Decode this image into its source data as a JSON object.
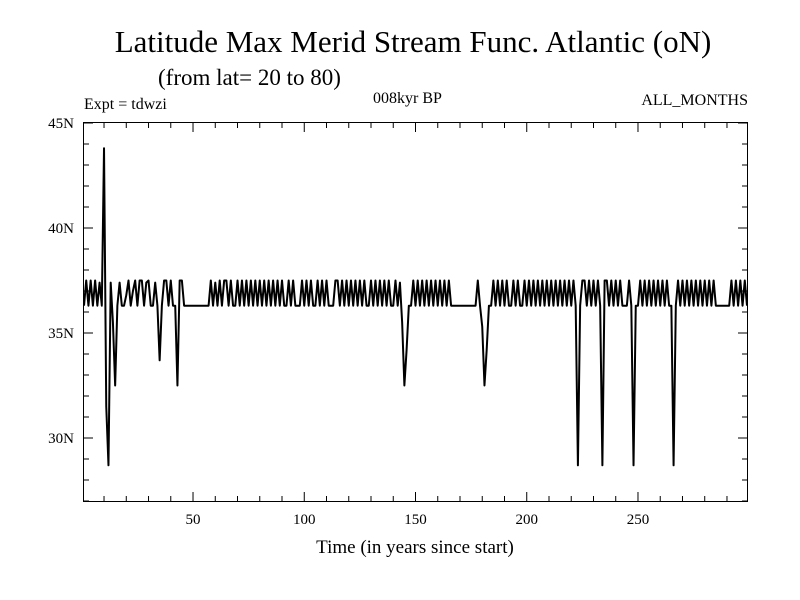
{
  "title": "Latitude Max Merid Stream Func. Atlantic (oN)",
  "subtitle": "(from lat= 20 to 80)",
  "expt_label": "Expt = tdwzi",
  "period_label": "008kyr BP",
  "months_label": "ALL_MONTHS",
  "chart_data": {
    "type": "line",
    "title": "Latitude Max Merid Stream Func. Atlantic (oN)",
    "xlabel": "Time (in years since start)",
    "ylabel": "",
    "xlim": [
      1,
      299
    ],
    "ylim": [
      27,
      45
    ],
    "x_ticks": [
      50,
      100,
      150,
      200,
      250
    ],
    "x_tick_labels": [
      "50",
      "100",
      "150",
      "200",
      "250"
    ],
    "y_ticks": [
      30,
      35,
      40,
      45
    ],
    "y_tick_labels": [
      "30N",
      "35N",
      "40N",
      "45N"
    ],
    "line_color": "#000000",
    "grid": false,
    "series": [
      {
        "values": [
          [
            1,
            36.3
          ],
          [
            2,
            37.5
          ],
          [
            3,
            36.3
          ],
          [
            4,
            37.5
          ],
          [
            5,
            36.3
          ],
          [
            6,
            37.5
          ],
          [
            7,
            36.3
          ],
          [
            8,
            37.4
          ],
          [
            9,
            36.3
          ],
          [
            10,
            43.8
          ],
          [
            11,
            31.5
          ],
          [
            12,
            28.7
          ],
          [
            13,
            37.4
          ],
          [
            14,
            35.5
          ],
          [
            15,
            32.5
          ],
          [
            16,
            36.3
          ],
          [
            17,
            37.4
          ],
          [
            18,
            36.3
          ],
          [
            19,
            36.3
          ],
          [
            20,
            36.8
          ],
          [
            21,
            37.5
          ],
          [
            22,
            36.3
          ],
          [
            23,
            37.0
          ],
          [
            24,
            37.5
          ],
          [
            25,
            36.3
          ],
          [
            26,
            37.5
          ],
          [
            27,
            37.5
          ],
          [
            28,
            36.3
          ],
          [
            29,
            37.4
          ],
          [
            30,
            37.5
          ],
          [
            31,
            36.3
          ],
          [
            32,
            36.3
          ],
          [
            33,
            37.4
          ],
          [
            34,
            36.3
          ],
          [
            35,
            33.7
          ],
          [
            36,
            36.3
          ],
          [
            37,
            37.5
          ],
          [
            38,
            37.5
          ],
          [
            39,
            36.3
          ],
          [
            40,
            37.5
          ],
          [
            41,
            36.3
          ],
          [
            42,
            36.3
          ],
          [
            43,
            32.5
          ],
          [
            44,
            37.5
          ],
          [
            45,
            37.5
          ],
          [
            46,
            36.3
          ],
          [
            47,
            36.3
          ],
          [
            48,
            36.3
          ],
          [
            49,
            36.3
          ],
          [
            50,
            36.3
          ],
          [
            51,
            36.3
          ],
          [
            52,
            36.3
          ],
          [
            53,
            36.3
          ],
          [
            54,
            36.3
          ],
          [
            55,
            36.3
          ],
          [
            56,
            36.3
          ],
          [
            57,
            36.3
          ],
          [
            58,
            37.5
          ],
          [
            59,
            36.3
          ],
          [
            60,
            37.4
          ],
          [
            61,
            36.3
          ],
          [
            62,
            37.5
          ],
          [
            63,
            36.3
          ],
          [
            64,
            37.5
          ],
          [
            65,
            37.5
          ],
          [
            66,
            36.3
          ],
          [
            67,
            37.5
          ],
          [
            68,
            36.3
          ],
          [
            69,
            36.3
          ],
          [
            70,
            37.5
          ],
          [
            71,
            36.3
          ],
          [
            72,
            37.5
          ],
          [
            73,
            36.3
          ],
          [
            74,
            37.5
          ],
          [
            75,
            36.3
          ],
          [
            76,
            37.5
          ],
          [
            77,
            36.3
          ],
          [
            78,
            37.5
          ],
          [
            79,
            36.3
          ],
          [
            80,
            37.5
          ],
          [
            81,
            36.3
          ],
          [
            82,
            37.5
          ],
          [
            83,
            36.3
          ],
          [
            84,
            37.5
          ],
          [
            85,
            36.3
          ],
          [
            86,
            37.5
          ],
          [
            87,
            36.3
          ],
          [
            88,
            37.5
          ],
          [
            89,
            36.3
          ],
          [
            90,
            37.5
          ],
          [
            91,
            36.3
          ],
          [
            92,
            36.3
          ],
          [
            93,
            37.5
          ],
          [
            94,
            36.3
          ],
          [
            95,
            37.5
          ],
          [
            96,
            36.3
          ],
          [
            97,
            36.3
          ],
          [
            98,
            36.3
          ],
          [
            99,
            37.5
          ],
          [
            100,
            36.3
          ],
          [
            101,
            37.5
          ],
          [
            102,
            36.3
          ],
          [
            103,
            37.5
          ],
          [
            104,
            36.3
          ],
          [
            105,
            36.3
          ],
          [
            106,
            37.5
          ],
          [
            107,
            36.3
          ],
          [
            108,
            37.5
          ],
          [
            109,
            36.3
          ],
          [
            110,
            37.5
          ],
          [
            111,
            36.3
          ],
          [
            112,
            36.3
          ],
          [
            113,
            36.3
          ],
          [
            114,
            37.5
          ],
          [
            115,
            37.5
          ],
          [
            116,
            36.3
          ],
          [
            117,
            37.5
          ],
          [
            118,
            36.3
          ],
          [
            119,
            37.5
          ],
          [
            120,
            36.3
          ],
          [
            121,
            37.5
          ],
          [
            122,
            36.3
          ],
          [
            123,
            37.5
          ],
          [
            124,
            36.3
          ],
          [
            125,
            37.5
          ],
          [
            126,
            36.3
          ],
          [
            127,
            37.5
          ],
          [
            128,
            36.3
          ],
          [
            129,
            36.3
          ],
          [
            130,
            37.5
          ],
          [
            131,
            36.3
          ],
          [
            132,
            37.5
          ],
          [
            133,
            36.3
          ],
          [
            134,
            37.5
          ],
          [
            135,
            36.3
          ],
          [
            136,
            37.5
          ],
          [
            137,
            36.3
          ],
          [
            138,
            37.5
          ],
          [
            139,
            36.3
          ],
          [
            140,
            36.3
          ],
          [
            141,
            37.5
          ],
          [
            142,
            36.3
          ],
          [
            143,
            37.4
          ],
          [
            144,
            35.5
          ],
          [
            145,
            32.5
          ],
          [
            146,
            34.2
          ],
          [
            147,
            36.3
          ],
          [
            148,
            36.3
          ],
          [
            149,
            37.5
          ],
          [
            150,
            36.3
          ],
          [
            151,
            37.5
          ],
          [
            152,
            36.3
          ],
          [
            153,
            37.5
          ],
          [
            154,
            36.3
          ],
          [
            155,
            37.5
          ],
          [
            156,
            36.3
          ],
          [
            157,
            37.5
          ],
          [
            158,
            36.3
          ],
          [
            159,
            37.5
          ],
          [
            160,
            36.3
          ],
          [
            161,
            37.5
          ],
          [
            162,
            36.3
          ],
          [
            163,
            37.5
          ],
          [
            164,
            36.3
          ],
          [
            165,
            37.5
          ],
          [
            166,
            36.3
          ],
          [
            167,
            36.3
          ],
          [
            168,
            36.3
          ],
          [
            169,
            36.3
          ],
          [
            170,
            36.3
          ],
          [
            171,
            36.3
          ],
          [
            172,
            36.3
          ],
          [
            173,
            36.3
          ],
          [
            174,
            36.3
          ],
          [
            175,
            36.3
          ],
          [
            176,
            36.3
          ],
          [
            177,
            36.3
          ],
          [
            178,
            37.5
          ],
          [
            179,
            36.3
          ],
          [
            180,
            35.3
          ],
          [
            181,
            32.5
          ],
          [
            182,
            34.2
          ],
          [
            183,
            36.3
          ],
          [
            184,
            36.3
          ],
          [
            185,
            37.5
          ],
          [
            186,
            36.3
          ],
          [
            187,
            37.5
          ],
          [
            188,
            36.3
          ],
          [
            189,
            37.5
          ],
          [
            190,
            36.3
          ],
          [
            191,
            37.5
          ],
          [
            192,
            36.3
          ],
          [
            193,
            36.3
          ],
          [
            194,
            37.5
          ],
          [
            195,
            36.3
          ],
          [
            196,
            37.5
          ],
          [
            197,
            36.3
          ],
          [
            198,
            36.3
          ],
          [
            199,
            37.5
          ],
          [
            200,
            36.3
          ],
          [
            201,
            37.5
          ],
          [
            202,
            36.3
          ],
          [
            203,
            37.5
          ],
          [
            204,
            36.3
          ],
          [
            205,
            37.5
          ],
          [
            206,
            36.3
          ],
          [
            207,
            37.5
          ],
          [
            208,
            36.3
          ],
          [
            209,
            37.5
          ],
          [
            210,
            36.3
          ],
          [
            211,
            37.5
          ],
          [
            212,
            36.3
          ],
          [
            213,
            37.5
          ],
          [
            214,
            36.3
          ],
          [
            215,
            37.5
          ],
          [
            216,
            36.3
          ],
          [
            217,
            37.5
          ],
          [
            218,
            36.3
          ],
          [
            219,
            37.5
          ],
          [
            220,
            36.3
          ],
          [
            221,
            37.5
          ],
          [
            222,
            36.3
          ],
          [
            223,
            28.7
          ],
          [
            224,
            36.3
          ],
          [
            225,
            37.5
          ],
          [
            226,
            37.5
          ],
          [
            227,
            36.3
          ],
          [
            228,
            37.5
          ],
          [
            229,
            36.3
          ],
          [
            230,
            37.5
          ],
          [
            231,
            36.3
          ],
          [
            232,
            37.5
          ],
          [
            233,
            36.3
          ],
          [
            234,
            28.7
          ],
          [
            235,
            37.5
          ],
          [
            236,
            37.5
          ],
          [
            237,
            36.3
          ],
          [
            238,
            37.5
          ],
          [
            239,
            36.3
          ],
          [
            240,
            37.5
          ],
          [
            241,
            36.3
          ],
          [
            242,
            37.5
          ],
          [
            243,
            36.3
          ],
          [
            244,
            36.3
          ],
          [
            245,
            36.3
          ],
          [
            246,
            37.5
          ],
          [
            247,
            36.3
          ],
          [
            248,
            28.7
          ],
          [
            249,
            36.3
          ],
          [
            250,
            36.3
          ],
          [
            251,
            37.5
          ],
          [
            252,
            36.3
          ],
          [
            253,
            37.5
          ],
          [
            254,
            36.3
          ],
          [
            255,
            37.5
          ],
          [
            256,
            36.3
          ],
          [
            257,
            37.5
          ],
          [
            258,
            36.3
          ],
          [
            259,
            37.5
          ],
          [
            260,
            36.3
          ],
          [
            261,
            37.5
          ],
          [
            262,
            36.3
          ],
          [
            263,
            37.5
          ],
          [
            264,
            36.3
          ],
          [
            265,
            36.3
          ],
          [
            266,
            28.7
          ],
          [
            267,
            36.3
          ],
          [
            268,
            37.5
          ],
          [
            269,
            36.3
          ],
          [
            270,
            37.5
          ],
          [
            271,
            36.3
          ],
          [
            272,
            37.5
          ],
          [
            273,
            36.3
          ],
          [
            274,
            37.5
          ],
          [
            275,
            36.3
          ],
          [
            276,
            37.5
          ],
          [
            277,
            36.3
          ],
          [
            278,
            37.5
          ],
          [
            279,
            36.3
          ],
          [
            280,
            37.5
          ],
          [
            281,
            36.3
          ],
          [
            282,
            37.5
          ],
          [
            283,
            36.3
          ],
          [
            284,
            37.5
          ],
          [
            285,
            36.3
          ],
          [
            286,
            36.3
          ],
          [
            287,
            36.3
          ],
          [
            288,
            36.3
          ],
          [
            289,
            36.3
          ],
          [
            290,
            36.3
          ],
          [
            291,
            36.3
          ],
          [
            292,
            37.5
          ],
          [
            293,
            36.3
          ],
          [
            294,
            37.5
          ],
          [
            295,
            36.3
          ],
          [
            296,
            37.5
          ],
          [
            297,
            36.3
          ],
          [
            298,
            37.5
          ],
          [
            299,
            36.3
          ]
        ]
      }
    ]
  }
}
